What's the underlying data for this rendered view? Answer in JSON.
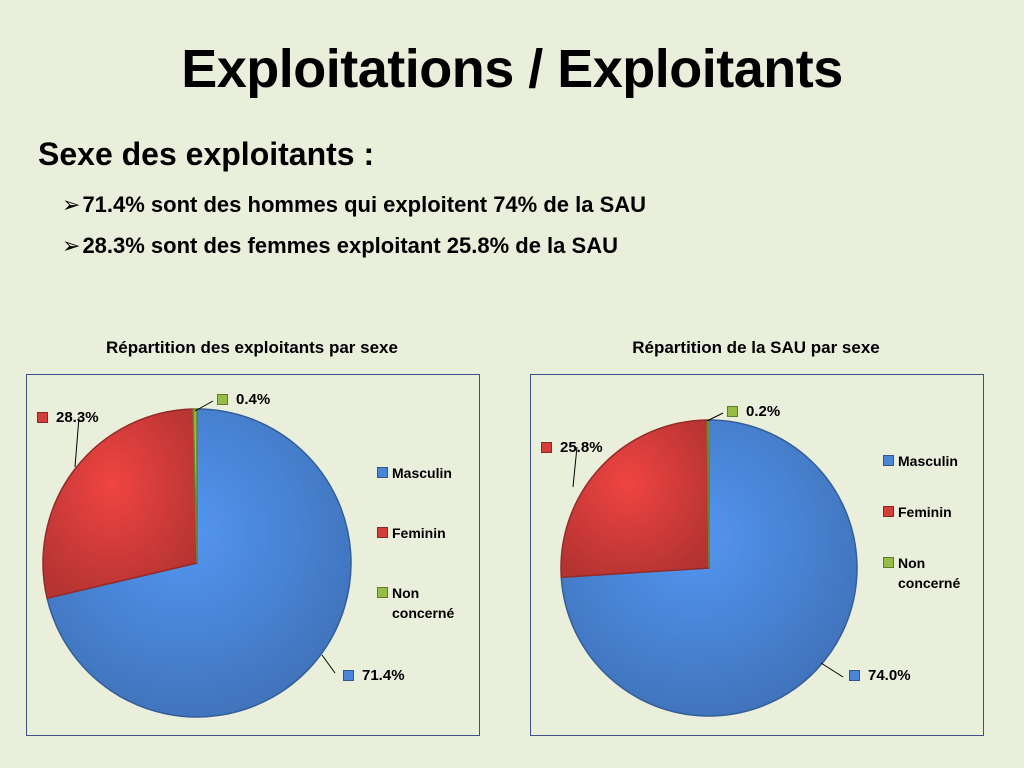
{
  "slide": {
    "title": "Exploitations / Exploitants",
    "subtitle": "Sexe des exploitants :",
    "bullets": [
      "71.4% sont des hommes qui exploitent  74% de la SAU",
      "28.3% sont des femmes exploitant 25.8% de la SAU"
    ],
    "bullet_icon": "arrow-bullet-icon"
  },
  "colors": {
    "Masculin": "#4a86d8",
    "Feminin": "#d53d3b",
    "Non concerné": "#96be45",
    "frame": "#3d4f8f"
  },
  "chart_data": [
    {
      "type": "pie",
      "title": "Répartition des exploitants par sexe",
      "categories": [
        "Masculin",
        "Feminin",
        "Non concerné"
      ],
      "values": [
        71.4,
        28.3,
        0.4
      ],
      "data_labels": [
        "71.4%",
        "28.3%",
        "0.4%"
      ],
      "legend": {
        "placement": "right",
        "entries": [
          "Masculin",
          "Feminin",
          "Non concerné"
        ]
      }
    },
    {
      "type": "pie",
      "title": "Répartition de la SAU par sexe",
      "categories": [
        "Masculin",
        "Feminin",
        "Non concerné"
      ],
      "values": [
        74.0,
        25.8,
        0.2
      ],
      "data_labels": [
        "74.0%",
        "25.8%",
        "0.2%"
      ],
      "legend": {
        "placement": "right",
        "entries": [
          "Masculin",
          "Feminin",
          "Non concerné"
        ]
      }
    }
  ]
}
